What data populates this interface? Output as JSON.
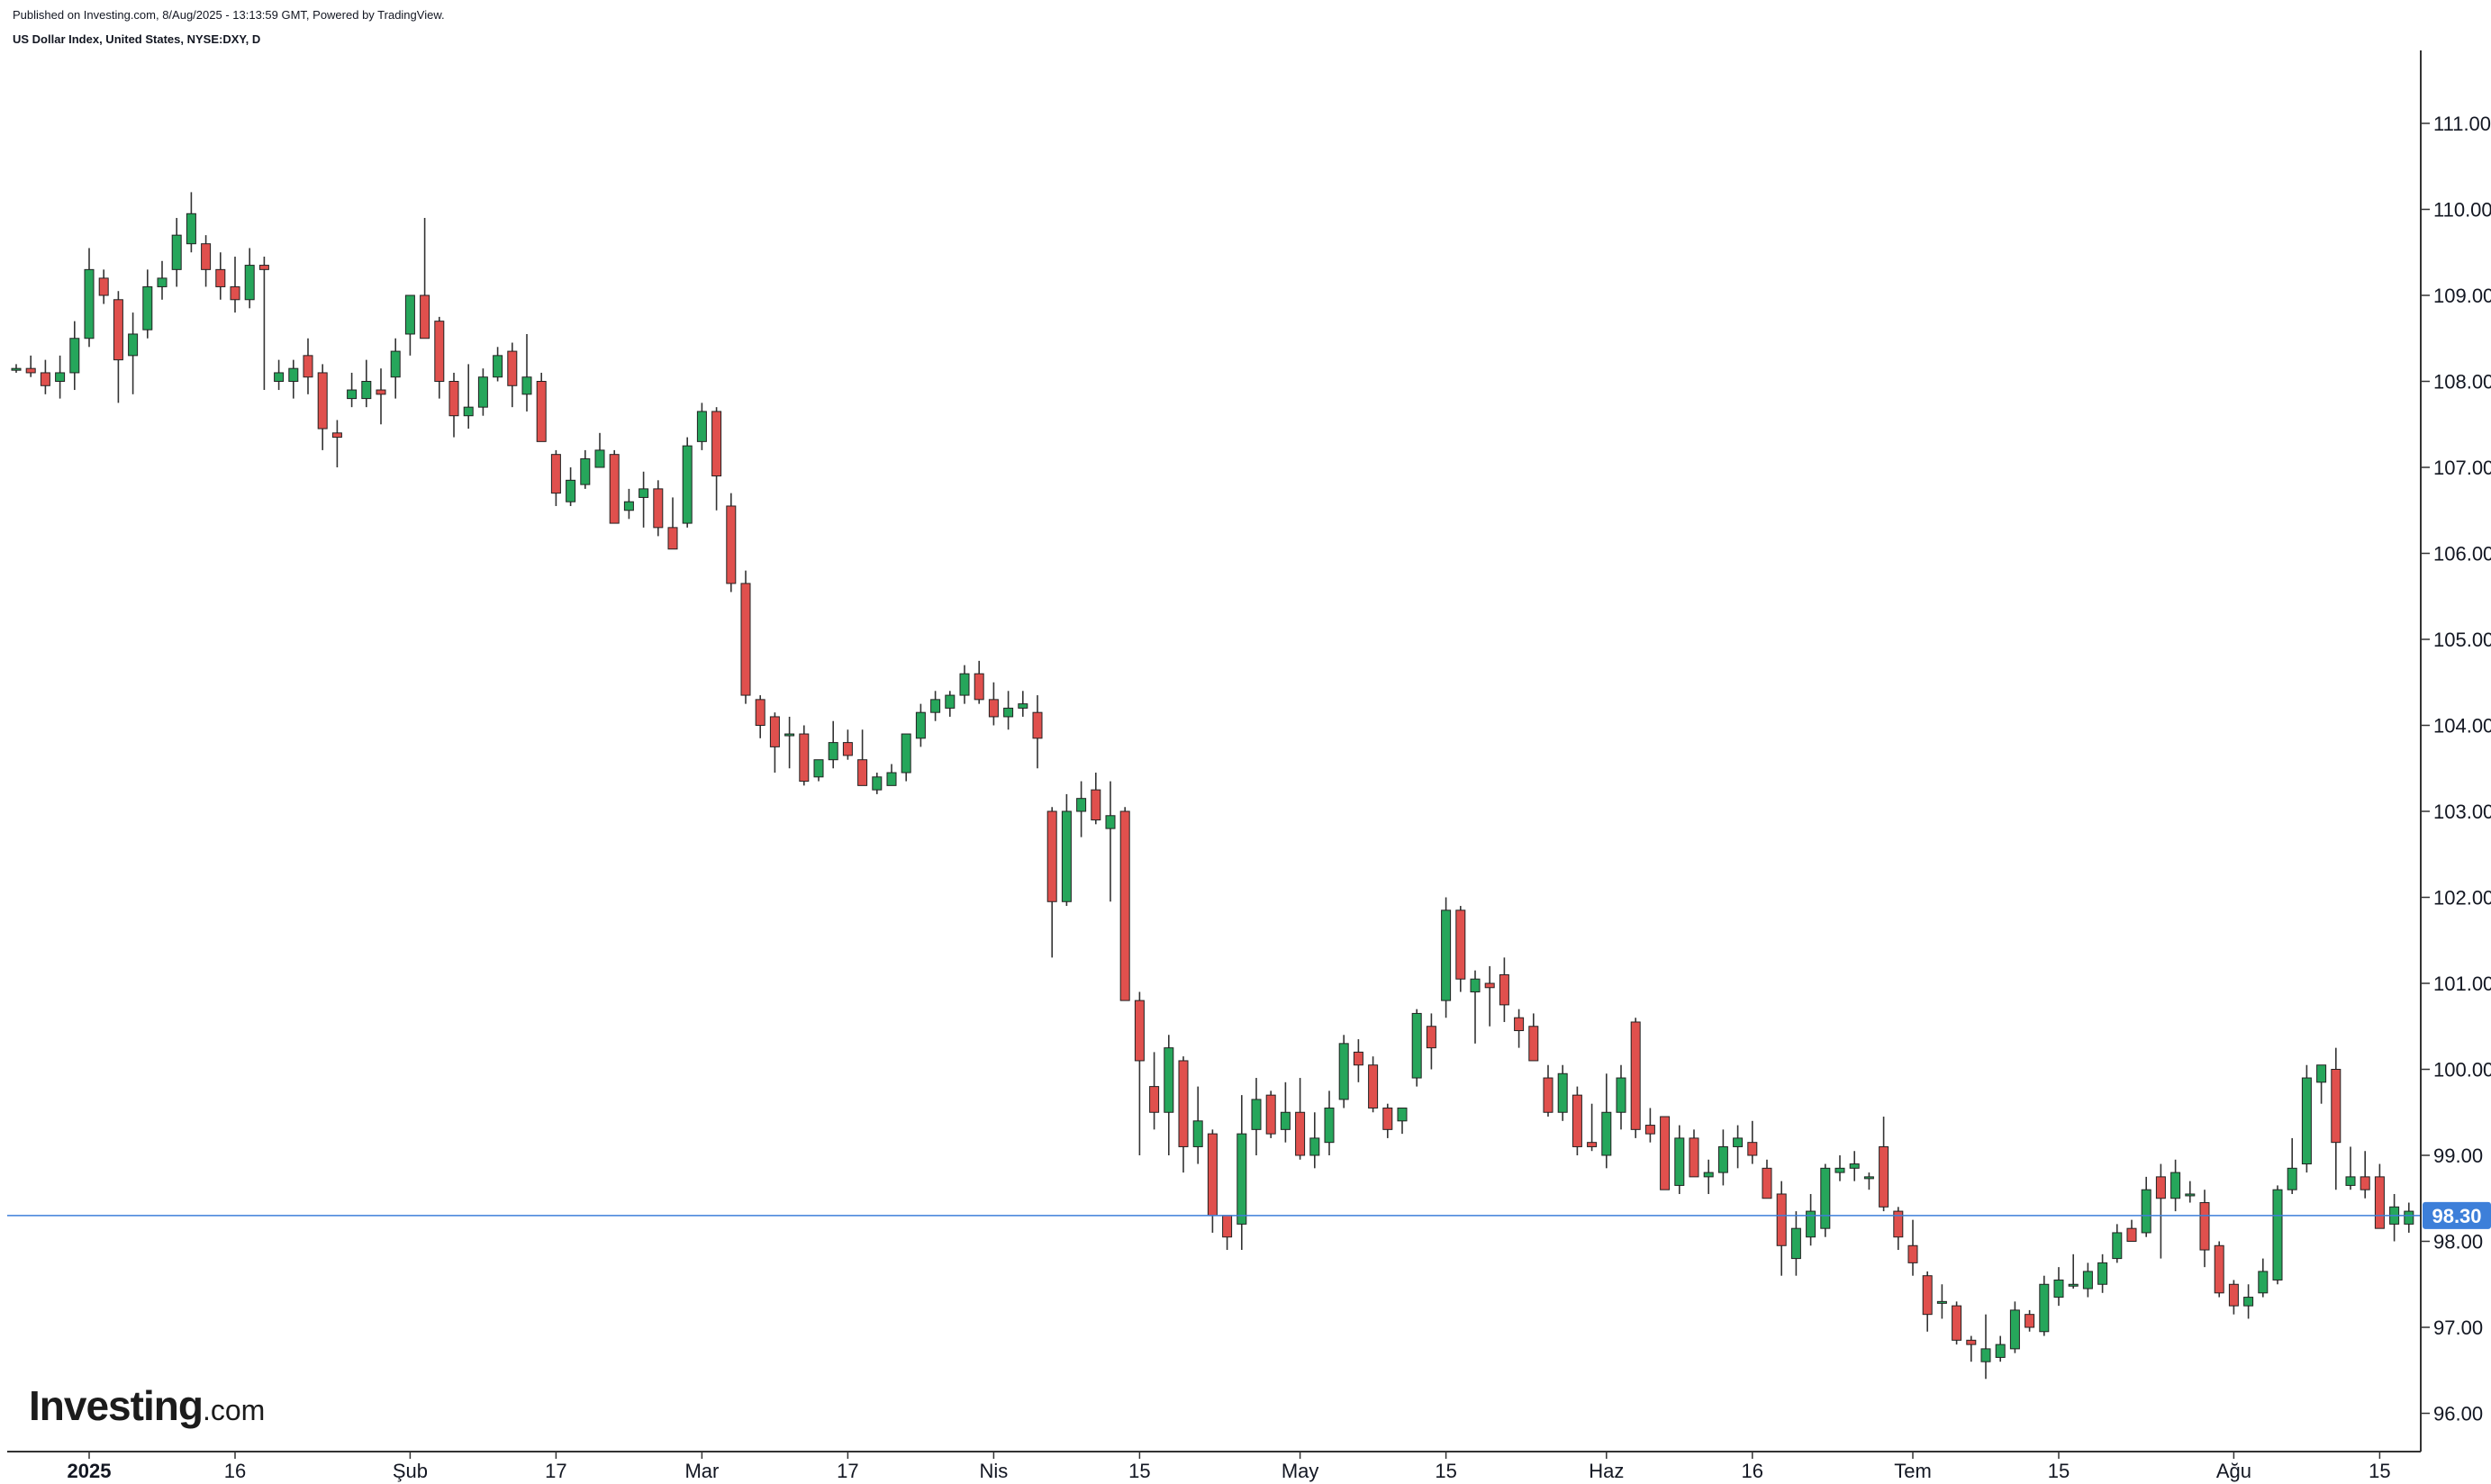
{
  "header": {
    "published": "Published on Investing.com, 8/Aug/2025 - 13:13:59 GMT, Powered by TradingView.",
    "title": "US Dollar Index, United States, NYSE:DXY, D"
  },
  "logo": {
    "main": "Investing",
    "suffix": ".com"
  },
  "colors": {
    "up": "#26a65b",
    "down": "#e0504d",
    "wick": "#333333",
    "last_price": "#3d7fd9",
    "axis": "#333333"
  },
  "chart_data": {
    "type": "candlestick",
    "title": "",
    "ylim": [
      95.6,
      111.8
    ],
    "y_ticks": [
      "96.00",
      "97.00",
      "98.00",
      "99.00",
      "100.00",
      "101.00",
      "102.00",
      "103.00",
      "104.00",
      "105.00",
      "106.00",
      "107.00",
      "108.00",
      "109.00",
      "110.00",
      "111.00"
    ],
    "x_labels": [
      {
        "label": "2025",
        "day": 5
      },
      {
        "label": "16",
        "day": 15
      },
      {
        "label": "Şub",
        "day": 27
      },
      {
        "label": "17",
        "day": 37
      },
      {
        "label": "Mar",
        "day": 47
      },
      {
        "label": "17",
        "day": 57
      },
      {
        "label": "Nis",
        "day": 67
      },
      {
        "label": "15",
        "day": 77
      },
      {
        "label": "May",
        "day": 88
      },
      {
        "label": "15",
        "day": 98
      },
      {
        "label": "Haz",
        "day": 109
      },
      {
        "label": "16",
        "day": 119
      },
      {
        "label": "Tem",
        "day": 130
      },
      {
        "label": "15",
        "day": 140
      },
      {
        "label": "Ağu",
        "day": 152
      },
      {
        "label": "15",
        "day": 162
      }
    ],
    "last_price": 98.3,
    "last_price_label": "98.30",
    "grid": false,
    "ohlc": [
      [
        108.15,
        108.2,
        108.1,
        108.15
      ],
      [
        108.15,
        108.3,
        108.05,
        108.1
      ],
      [
        108.1,
        108.25,
        107.85,
        107.95
      ],
      [
        108.0,
        108.3,
        107.8,
        108.1
      ],
      [
        108.1,
        108.7,
        107.9,
        108.5
      ],
      [
        108.5,
        109.55,
        108.4,
        109.3
      ],
      [
        109.2,
        109.3,
        108.9,
        109.0
      ],
      [
        108.95,
        109.05,
        107.75,
        108.25
      ],
      [
        108.3,
        108.8,
        107.85,
        108.55
      ],
      [
        108.6,
        109.3,
        108.5,
        109.1
      ],
      [
        109.1,
        109.4,
        108.95,
        109.2
      ],
      [
        109.3,
        109.9,
        109.1,
        109.7
      ],
      [
        109.6,
        110.2,
        109.5,
        109.95
      ],
      [
        109.6,
        109.7,
        109.1,
        109.3
      ],
      [
        109.3,
        109.5,
        108.95,
        109.1
      ],
      [
        109.1,
        109.45,
        108.8,
        108.95
      ],
      [
        108.95,
        109.55,
        108.85,
        109.35
      ],
      [
        109.35,
        109.45,
        107.9,
        109.3
      ],
      [
        108.0,
        108.25,
        107.9,
        108.1
      ],
      [
        108.0,
        108.25,
        107.8,
        108.15
      ],
      [
        108.3,
        108.5,
        107.85,
        108.05
      ],
      [
        108.1,
        108.2,
        107.2,
        107.45
      ],
      [
        107.4,
        107.55,
        107.0,
        107.35
      ],
      [
        107.8,
        108.1,
        107.7,
        107.9
      ],
      [
        107.8,
        108.25,
        107.7,
        108.0
      ],
      [
        107.9,
        108.15,
        107.5,
        107.85
      ],
      [
        108.05,
        108.5,
        107.8,
        108.35
      ],
      [
        108.55,
        108.9,
        108.3,
        109.0
      ],
      [
        109.0,
        109.9,
        108.5,
        108.5
      ],
      [
        108.7,
        108.75,
        107.8,
        108.0
      ],
      [
        108.0,
        108.1,
        107.35,
        107.6
      ],
      [
        107.6,
        108.2,
        107.45,
        107.7
      ],
      [
        107.7,
        108.15,
        107.6,
        108.05
      ],
      [
        108.05,
        108.4,
        108.0,
        108.3
      ],
      [
        108.35,
        108.45,
        107.7,
        107.95
      ],
      [
        107.85,
        108.55,
        107.65,
        108.05
      ],
      [
        108.0,
        108.1,
        107.3,
        107.3
      ],
      [
        107.15,
        107.2,
        106.55,
        106.7
      ],
      [
        106.6,
        107.0,
        106.55,
        106.85
      ],
      [
        106.8,
        107.2,
        106.75,
        107.1
      ],
      [
        107.0,
        107.4,
        107.0,
        107.2
      ],
      [
        107.15,
        107.2,
        106.35,
        106.35
      ],
      [
        106.5,
        106.75,
        106.4,
        106.6
      ],
      [
        106.65,
        106.95,
        106.3,
        106.75
      ],
      [
        106.75,
        106.85,
        106.2,
        106.3
      ],
      [
        106.3,
        106.65,
        106.2,
        106.05
      ],
      [
        106.35,
        107.35,
        106.3,
        107.25
      ],
      [
        107.3,
        107.75,
        107.2,
        107.65
      ],
      [
        107.65,
        107.7,
        106.5,
        106.9
      ],
      [
        106.55,
        106.7,
        105.55,
        105.65
      ],
      [
        105.65,
        105.8,
        104.25,
        104.35
      ],
      [
        104.3,
        104.35,
        103.85,
        104.0
      ],
      [
        104.1,
        104.15,
        103.45,
        103.75
      ],
      [
        103.9,
        104.1,
        103.5,
        103.9
      ],
      [
        103.9,
        104.0,
        103.3,
        103.35
      ],
      [
        103.4,
        103.6,
        103.35,
        103.6
      ],
      [
        103.6,
        104.05,
        103.5,
        103.8
      ],
      [
        103.8,
        103.95,
        103.6,
        103.65
      ],
      [
        103.6,
        103.95,
        103.3,
        103.3
      ],
      [
        103.25,
        103.45,
        103.2,
        103.4
      ],
      [
        103.3,
        103.55,
        103.3,
        103.45
      ],
      [
        103.45,
        103.9,
        103.35,
        103.9
      ],
      [
        103.85,
        104.25,
        103.75,
        104.15
      ],
      [
        104.15,
        104.4,
        104.05,
        104.3
      ],
      [
        104.2,
        104.4,
        104.1,
        104.35
      ],
      [
        104.35,
        104.7,
        104.25,
        104.6
      ],
      [
        104.6,
        104.75,
        104.25,
        104.3
      ],
      [
        104.3,
        104.5,
        104.0,
        104.1
      ],
      [
        104.1,
        104.4,
        103.95,
        104.2
      ],
      [
        104.2,
        104.4,
        104.1,
        104.25
      ],
      [
        104.15,
        104.35,
        103.5,
        103.85
      ],
      [
        103.0,
        103.05,
        101.3,
        101.95
      ],
      [
        101.95,
        103.2,
        101.9,
        103.0
      ],
      [
        103.0,
        103.35,
        102.7,
        103.15
      ],
      [
        103.25,
        103.45,
        102.85,
        102.9
      ],
      [
        102.8,
        103.35,
        101.95,
        102.95
      ],
      [
        103.0,
        103.05,
        100.85,
        100.8
      ],
      [
        100.8,
        100.9,
        99.0,
        100.1
      ],
      [
        99.8,
        100.2,
        99.3,
        99.5
      ],
      [
        99.5,
        100.4,
        99.0,
        100.25
      ],
      [
        100.1,
        100.15,
        98.8,
        99.1
      ],
      [
        99.1,
        99.8,
        98.9,
        99.4
      ],
      [
        99.25,
        99.3,
        98.1,
        98.3
      ],
      [
        98.3,
        98.3,
        97.9,
        98.05
      ],
      [
        98.2,
        99.7,
        97.9,
        99.25
      ],
      [
        99.3,
        99.9,
        99.0,
        99.65
      ],
      [
        99.7,
        99.75,
        99.2,
        99.25
      ],
      [
        99.3,
        99.85,
        99.15,
        99.5
      ],
      [
        99.5,
        99.9,
        98.95,
        99.0
      ],
      [
        99.0,
        99.5,
        98.85,
        99.2
      ],
      [
        99.15,
        99.75,
        99.0,
        99.55
      ],
      [
        99.65,
        100.4,
        99.55,
        100.3
      ],
      [
        100.2,
        100.35,
        99.85,
        100.05
      ],
      [
        100.05,
        100.15,
        99.5,
        99.55
      ],
      [
        99.55,
        99.6,
        99.2,
        99.3
      ],
      [
        99.4,
        99.5,
        99.25,
        99.55
      ],
      [
        99.9,
        100.7,
        99.8,
        100.65
      ],
      [
        100.5,
        100.65,
        100.0,
        100.25
      ],
      [
        100.8,
        102.0,
        100.6,
        101.85
      ],
      [
        101.85,
        101.9,
        100.9,
        101.05
      ],
      [
        100.9,
        101.15,
        100.3,
        101.05
      ],
      [
        101.0,
        101.2,
        100.5,
        100.95
      ],
      [
        101.1,
        101.3,
        100.55,
        100.75
      ],
      [
        100.6,
        100.7,
        100.25,
        100.45
      ],
      [
        100.5,
        100.65,
        100.1,
        100.1
      ],
      [
        99.9,
        100.05,
        99.45,
        99.5
      ],
      [
        99.5,
        100.05,
        99.4,
        99.95
      ],
      [
        99.7,
        99.8,
        99.0,
        99.1
      ],
      [
        99.15,
        99.6,
        99.05,
        99.1
      ],
      [
        99.0,
        99.95,
        98.85,
        99.5
      ],
      [
        99.5,
        100.05,
        99.3,
        99.9
      ],
      [
        100.55,
        100.6,
        99.2,
        99.3
      ],
      [
        99.35,
        99.55,
        99.15,
        99.25
      ],
      [
        99.45,
        99.45,
        98.6,
        98.6
      ],
      [
        98.65,
        99.35,
        98.55,
        99.2
      ],
      [
        99.2,
        99.3,
        98.75,
        98.75
      ],
      [
        98.75,
        98.95,
        98.55,
        98.8
      ],
      [
        98.8,
        99.3,
        98.65,
        99.1
      ],
      [
        99.1,
        99.35,
        98.85,
        99.2
      ],
      [
        99.15,
        99.4,
        98.9,
        99.0
      ],
      [
        98.85,
        98.95,
        98.55,
        98.5
      ],
      [
        98.55,
        98.7,
        97.6,
        97.95
      ],
      [
        97.8,
        98.35,
        97.6,
        98.15
      ],
      [
        98.05,
        98.55,
        97.95,
        98.35
      ],
      [
        98.15,
        98.9,
        98.05,
        98.85
      ],
      [
        98.8,
        99.0,
        98.7,
        98.85
      ],
      [
        98.85,
        99.05,
        98.7,
        98.9
      ],
      [
        98.75,
        98.8,
        98.6,
        98.75
      ],
      [
        99.1,
        99.45,
        98.35,
        98.4
      ],
      [
        98.35,
        98.4,
        97.9,
        98.05
      ],
      [
        97.95,
        98.25,
        97.6,
        97.75
      ],
      [
        97.6,
        97.65,
        96.95,
        97.15
      ],
      [
        97.3,
        97.5,
        97.1,
        97.3
      ],
      [
        97.25,
        97.3,
        96.8,
        96.85
      ],
      [
        96.85,
        96.9,
        96.6,
        96.8
      ],
      [
        96.6,
        97.15,
        96.4,
        96.75
      ],
      [
        96.65,
        96.9,
        96.6,
        96.8
      ],
      [
        96.75,
        97.3,
        96.7,
        97.2
      ],
      [
        97.15,
        97.2,
        96.95,
        97.0
      ],
      [
        96.95,
        97.6,
        96.9,
        97.5
      ],
      [
        97.35,
        97.7,
        97.25,
        97.55
      ],
      [
        97.5,
        97.85,
        97.45,
        97.5
      ],
      [
        97.45,
        97.75,
        97.35,
        97.65
      ],
      [
        97.5,
        97.85,
        97.4,
        97.75
      ],
      [
        97.8,
        98.2,
        97.75,
        98.1
      ],
      [
        98.15,
        98.25,
        98.0,
        98.0
      ],
      [
        98.1,
        98.75,
        98.05,
        98.6
      ],
      [
        98.75,
        98.9,
        97.8,
        98.5
      ],
      [
        98.5,
        98.95,
        98.35,
        98.8
      ],
      [
        98.55,
        98.7,
        98.45,
        98.55
      ],
      [
        98.45,
        98.6,
        97.7,
        97.9
      ],
      [
        97.95,
        98.0,
        97.35,
        97.4
      ],
      [
        97.5,
        97.55,
        97.15,
        97.25
      ],
      [
        97.25,
        97.5,
        97.1,
        97.35
      ],
      [
        97.4,
        97.8,
        97.35,
        97.65
      ],
      [
        97.55,
        98.65,
        97.5,
        98.6
      ],
      [
        98.6,
        99.2,
        98.55,
        98.85
      ],
      [
        98.9,
        100.05,
        98.8,
        99.9
      ],
      [
        99.85,
        100.0,
        99.6,
        100.05
      ],
      [
        100.0,
        100.25,
        98.6,
        99.15
      ],
      [
        98.65,
        99.1,
        98.6,
        98.75
      ],
      [
        98.75,
        99.05,
        98.5,
        98.6
      ],
      [
        98.75,
        98.9,
        98.15,
        98.15
      ],
      [
        98.2,
        98.55,
        98.0,
        98.4
      ],
      [
        98.2,
        98.45,
        98.1,
        98.35
      ]
    ]
  }
}
